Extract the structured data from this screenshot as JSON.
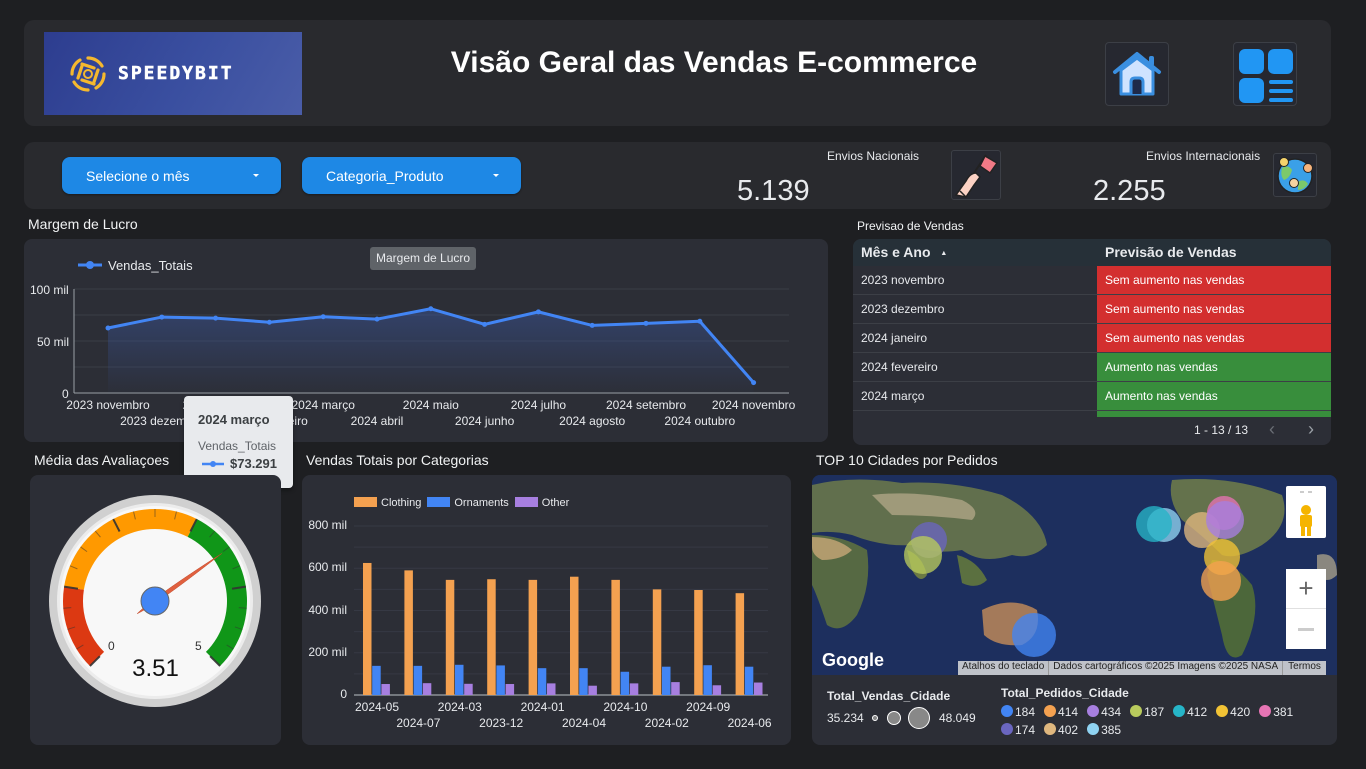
{
  "header": {
    "logo_text": "SPEEDYBIT",
    "title": "Visão Geral das Vendas E-commerce",
    "home_icon": "home-icon",
    "dashboard_icon": "dashboard-grid-icon"
  },
  "filters": {
    "month_dropdown": "Selecione o mês",
    "category_dropdown": "Categoria_Produto"
  },
  "kpis": {
    "national": {
      "label": "Envios Nacionais",
      "value": "5.139",
      "icon": "hand-flag-icon"
    },
    "international": {
      "label": "Envios Internacionais",
      "value": "2.255",
      "icon": "globe-people-icon"
    }
  },
  "line_section": {
    "title": "Margem de Lucro",
    "hover_label": "Margem de Lucro",
    "tooltip": {
      "title": "2024 março",
      "series": "Vendas_Totais",
      "value": "$73.291"
    }
  },
  "table_section": {
    "title": "Previsao de Vendas",
    "columns": [
      "Mês e Ano",
      "Previsão de Vendas"
    ],
    "sort_indicator": "▲",
    "rows": [
      {
        "month": "2023 novembro",
        "forecast": "Sem aumento nas vendas",
        "status": "red"
      },
      {
        "month": "2023 dezembro",
        "forecast": "Sem aumento nas vendas",
        "status": "red"
      },
      {
        "month": "2024 janeiro",
        "forecast": "Sem aumento nas vendas",
        "status": "red"
      },
      {
        "month": "2024 fevereiro",
        "forecast": "Aumento nas vendas",
        "status": "green"
      },
      {
        "month": "2024 março",
        "forecast": "Aumento nas vendas",
        "status": "green"
      }
    ],
    "pagination": "1 - 13 / 13",
    "status_colors": {
      "red": "#d32f2f",
      "green": "#388e3c"
    }
  },
  "gauge_section": {
    "title": "Média das Avaliaçoes",
    "value": "3.51",
    "min_label": "0",
    "max_label": "5"
  },
  "bar_section": {
    "title": "Vendas Totais por Categorias"
  },
  "map_section": {
    "title": "TOP 10 Cidades por Pedidos",
    "google_label": "Google",
    "attribution": {
      "shortcuts": "Atalhos do teclado",
      "data": "Dados cartográficos ©2025 Imagens ©2025 NASA",
      "terms": "Termos"
    },
    "size_legend": {
      "title": "Total_Vendas_Cidade",
      "min": "35.234",
      "max": "48.049"
    },
    "color_legend": {
      "title": "Total_Pedidos_Cidade",
      "items": [
        {
          "value": "184",
          "color": "#4285f4"
        },
        {
          "value": "414",
          "color": "#f4a150"
        },
        {
          "value": "434",
          "color": "#a77fe0"
        },
        {
          "value": "187",
          "color": "#b9cb5d"
        },
        {
          "value": "412",
          "color": "#26b5c8"
        },
        {
          "value": "420",
          "color": "#f2c335"
        },
        {
          "value": "381",
          "color": "#e674b4"
        },
        {
          "value": "174",
          "color": "#6a66c0"
        },
        {
          "value": "402",
          "color": "#dfb77e"
        },
        {
          "value": "385",
          "color": "#8fd3f2"
        }
      ]
    }
  },
  "chart_data": [
    {
      "type": "area",
      "title": "Margem de Lucro",
      "legend": [
        "Vendas_Totais"
      ],
      "legend_position": "top-left",
      "x": [
        "2023 novembro",
        "2023 dezembro",
        "2024 janeiro",
        "2024 fevereiro",
        "2024 março",
        "2024 abril",
        "2024 maio",
        "2024 junho",
        "2024 julho",
        "2024 agosto",
        "2024 setembro",
        "2024 outubro",
        "2024 novembro"
      ],
      "series": [
        {
          "name": "Vendas_Totais",
          "values": [
            62500,
            73000,
            72000,
            68000,
            73291,
            71000,
            81000,
            66000,
            78000,
            65000,
            67000,
            69000,
            10000
          ]
        }
      ],
      "yticks": [
        "0",
        "50 mil",
        "100 mil"
      ],
      "ylim": [
        0,
        100000
      ],
      "grid": true,
      "color": "#4285f4"
    },
    {
      "type": "bar",
      "title": "Vendas Totais por Categorias",
      "categories": [
        "2024-05",
        "2024-07",
        "2024-03",
        "2023-12",
        "2024-01",
        "2024-04",
        "2024-10",
        "2024-02",
        "2024-09",
        "2024-06"
      ],
      "series": [
        {
          "name": "Clothing",
          "color": "#f4a150",
          "values": [
            625000,
            590000,
            545000,
            548000,
            545000,
            560000,
            545000,
            500000,
            497000,
            482000
          ]
        },
        {
          "name": "Ornaments",
          "color": "#4285f4",
          "values": [
            138000,
            138000,
            143000,
            140000,
            127000,
            127000,
            110000,
            134000,
            141000,
            134000
          ]
        },
        {
          "name": "Other",
          "color": "#a77fe0",
          "values": [
            52000,
            56000,
            53000,
            52000,
            55000,
            44000,
            55000,
            61000,
            46000,
            59000
          ]
        }
      ],
      "yticks": [
        "0",
        "200 mil",
        "400 mil",
        "600 mil",
        "800 mil"
      ],
      "ylim": [
        0,
        800000
      ],
      "grid": true,
      "legend_position": "top-left"
    }
  ]
}
